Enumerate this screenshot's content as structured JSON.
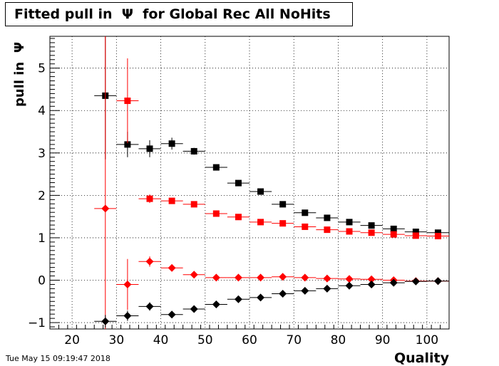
{
  "chart_data": {
    "type": "scatter",
    "title": "Fitted pull in  Ψ  for Global Rec All NoHits",
    "xlabel": "Quality",
    "ylabel": "pull in  Ψ",
    "xlim": [
      15,
      105
    ],
    "ylim": [
      -1.15,
      5.75
    ],
    "x_ticks": [
      20,
      30,
      40,
      50,
      60,
      70,
      80,
      90,
      100
    ],
    "y_ticks": [
      -1,
      0,
      1,
      2,
      3,
      4,
      5
    ],
    "grid": true,
    "bin_half_width": 2.5,
    "series": [
      {
        "marker": "square",
        "color": "#000000",
        "points": [
          {
            "x": 27.5,
            "y": 4.35,
            "err": 1.5
          },
          {
            "x": 32.5,
            "y": 3.2,
            "err": 0.3
          },
          {
            "x": 37.5,
            "y": 3.1,
            "err": 0.2
          },
          {
            "x": 42.5,
            "y": 3.22,
            "err": 0.14
          },
          {
            "x": 47.5,
            "y": 3.04,
            "err": 0.08
          },
          {
            "x": 52.5,
            "y": 2.66,
            "err": 0.05
          },
          {
            "x": 57.5,
            "y": 2.29,
            "err": 0.04
          },
          {
            "x": 62.5,
            "y": 2.09,
            "err": 0.04
          },
          {
            "x": 67.5,
            "y": 1.79,
            "err": 0.03
          },
          {
            "x": 72.5,
            "y": 1.59,
            "err": 0.03
          },
          {
            "x": 77.5,
            "y": 1.47,
            "err": 0.02
          },
          {
            "x": 82.5,
            "y": 1.37,
            "err": 0.02
          },
          {
            "x": 87.5,
            "y": 1.29,
            "err": 0.02
          },
          {
            "x": 92.5,
            "y": 1.21,
            "err": 0.02
          },
          {
            "x": 97.5,
            "y": 1.14,
            "err": 0.02
          },
          {
            "x": 102.5,
            "y": 1.12,
            "err": 0.02
          }
        ]
      },
      {
        "marker": "square",
        "color": "#ff0000",
        "points": [
          {
            "x": 32.5,
            "y": 4.23,
            "err": 1.0
          },
          {
            "x": 37.5,
            "y": 1.92,
            "err": 0.1
          },
          {
            "x": 42.5,
            "y": 1.87,
            "err": 0.07
          },
          {
            "x": 47.5,
            "y": 1.79,
            "err": 0.04
          },
          {
            "x": 52.5,
            "y": 1.57,
            "err": 0.03
          },
          {
            "x": 57.5,
            "y": 1.49,
            "err": 0.03
          },
          {
            "x": 62.5,
            "y": 1.37,
            "err": 0.02
          },
          {
            "x": 67.5,
            "y": 1.34,
            "err": 0.02
          },
          {
            "x": 72.5,
            "y": 1.26,
            "err": 0.02
          },
          {
            "x": 77.5,
            "y": 1.19,
            "err": 0.02
          },
          {
            "x": 82.5,
            "y": 1.15,
            "err": 0.02
          },
          {
            "x": 87.5,
            "y": 1.12,
            "err": 0.02
          },
          {
            "x": 92.5,
            "y": 1.08,
            "err": 0.02
          },
          {
            "x": 97.5,
            "y": 1.05,
            "err": 0.02
          },
          {
            "x": 102.5,
            "y": 1.04,
            "err": 0.02
          }
        ]
      },
      {
        "marker": "diamond",
        "color": "#ff0000",
        "points": [
          {
            "x": 27.5,
            "y": 1.69,
            "err": 5.0
          },
          {
            "x": 32.5,
            "y": -0.1,
            "err": 0.6
          },
          {
            "x": 37.5,
            "y": 0.44,
            "err": 0.12
          },
          {
            "x": 42.5,
            "y": 0.29,
            "err": 0.06
          },
          {
            "x": 47.5,
            "y": 0.13,
            "err": 0.04
          },
          {
            "x": 52.5,
            "y": 0.06,
            "err": 0.03
          },
          {
            "x": 57.5,
            "y": 0.06,
            "err": 0.02
          },
          {
            "x": 62.5,
            "y": 0.06,
            "err": 0.02
          },
          {
            "x": 67.5,
            "y": 0.08,
            "err": 0.02
          },
          {
            "x": 72.5,
            "y": 0.06,
            "err": 0.02
          },
          {
            "x": 77.5,
            "y": 0.04,
            "err": 0.02
          },
          {
            "x": 82.5,
            "y": 0.03,
            "err": 0.02
          },
          {
            "x": 87.5,
            "y": 0.02,
            "err": 0.02
          },
          {
            "x": 92.5,
            "y": 0.0,
            "err": 0.02
          },
          {
            "x": 97.5,
            "y": -0.02,
            "err": 0.02
          },
          {
            "x": 102.5,
            "y": -0.02,
            "err": 0.02
          }
        ]
      },
      {
        "marker": "diamond",
        "color": "#000000",
        "points": [
          {
            "x": 27.5,
            "y": -0.97,
            "err": 0.15
          },
          {
            "x": 32.5,
            "y": -0.84,
            "err": 0.12
          },
          {
            "x": 37.5,
            "y": -0.62,
            "err": 0.1
          },
          {
            "x": 42.5,
            "y": -0.81,
            "err": 0.07
          },
          {
            "x": 47.5,
            "y": -0.68,
            "err": 0.05
          },
          {
            "x": 52.5,
            "y": -0.57,
            "err": 0.03
          },
          {
            "x": 57.5,
            "y": -0.45,
            "err": 0.03
          },
          {
            "x": 62.5,
            "y": -0.41,
            "err": 0.03
          },
          {
            "x": 67.5,
            "y": -0.32,
            "err": 0.02
          },
          {
            "x": 72.5,
            "y": -0.25,
            "err": 0.02
          },
          {
            "x": 77.5,
            "y": -0.2,
            "err": 0.02
          },
          {
            "x": 82.5,
            "y": -0.13,
            "err": 0.02
          },
          {
            "x": 87.5,
            "y": -0.1,
            "err": 0.02
          },
          {
            "x": 92.5,
            "y": -0.06,
            "err": 0.02
          },
          {
            "x": 97.5,
            "y": -0.03,
            "err": 0.02
          },
          {
            "x": 102.5,
            "y": -0.02,
            "err": 0.02
          }
        ]
      }
    ]
  },
  "timestamp": "Tue May 15 09:19:47 2018"
}
